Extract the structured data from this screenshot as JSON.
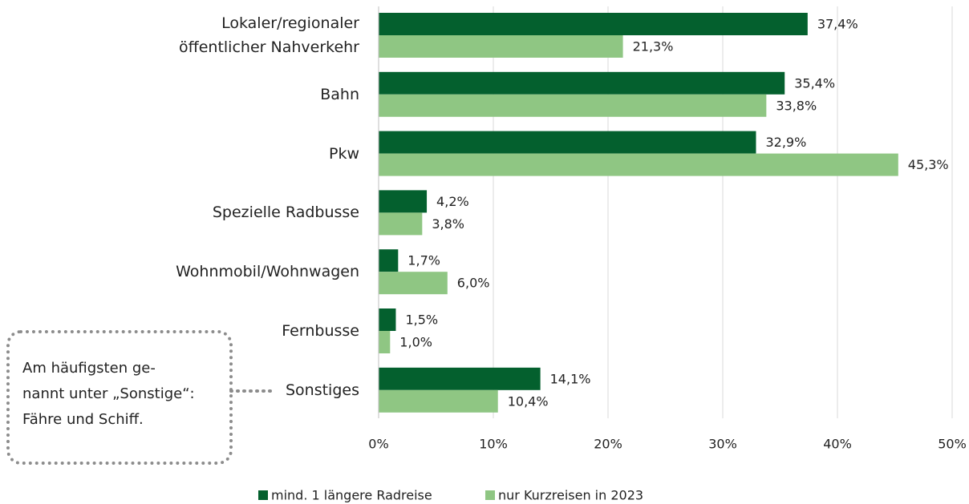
{
  "chart_data": {
    "type": "barh",
    "categories": [
      "Lokaler/regionaler\nöffentlicher Nahverkehr",
      "Bahn",
      "Pkw",
      "Spezielle Radbusse",
      "Wohnmobil/Wohnwagen",
      "Fernbusse",
      "Sonstiges"
    ],
    "series": [
      {
        "name": "mind. 1 längere Radreise",
        "color": "#04602e",
        "values": [
          37.4,
          35.4,
          32.9,
          4.2,
          1.7,
          1.5,
          14.1
        ],
        "value_labels": [
          "37,4%",
          "35,4%",
          "32,9%",
          "4,2%",
          "1,7%",
          "1,5%",
          "14,1%"
        ]
      },
      {
        "name": "nur Kurzreisen in 2023",
        "color": "#8fc683",
        "values": [
          21.3,
          33.8,
          45.3,
          3.8,
          6.0,
          1.0,
          10.4
        ],
        "value_labels": [
          "21,3%",
          "33,8%",
          "45,3%",
          "3,8%",
          "6,0%",
          "1,0%",
          "10,4%"
        ]
      }
    ],
    "xlim": [
      0,
      50
    ],
    "xticks": [
      {
        "value": 0,
        "label": "0%"
      },
      {
        "value": 10,
        "label": "10%"
      },
      {
        "value": 20,
        "label": "20%"
      },
      {
        "value": 30,
        "label": "30%"
      },
      {
        "value": 40,
        "label": "40%"
      },
      {
        "value": 50,
        "label": "50%"
      }
    ],
    "grid": true,
    "legend": "bottom",
    "annotation": "Am häufigsten ge-\nnannt unter „Sonstige“:\nFähre und Schiff."
  }
}
